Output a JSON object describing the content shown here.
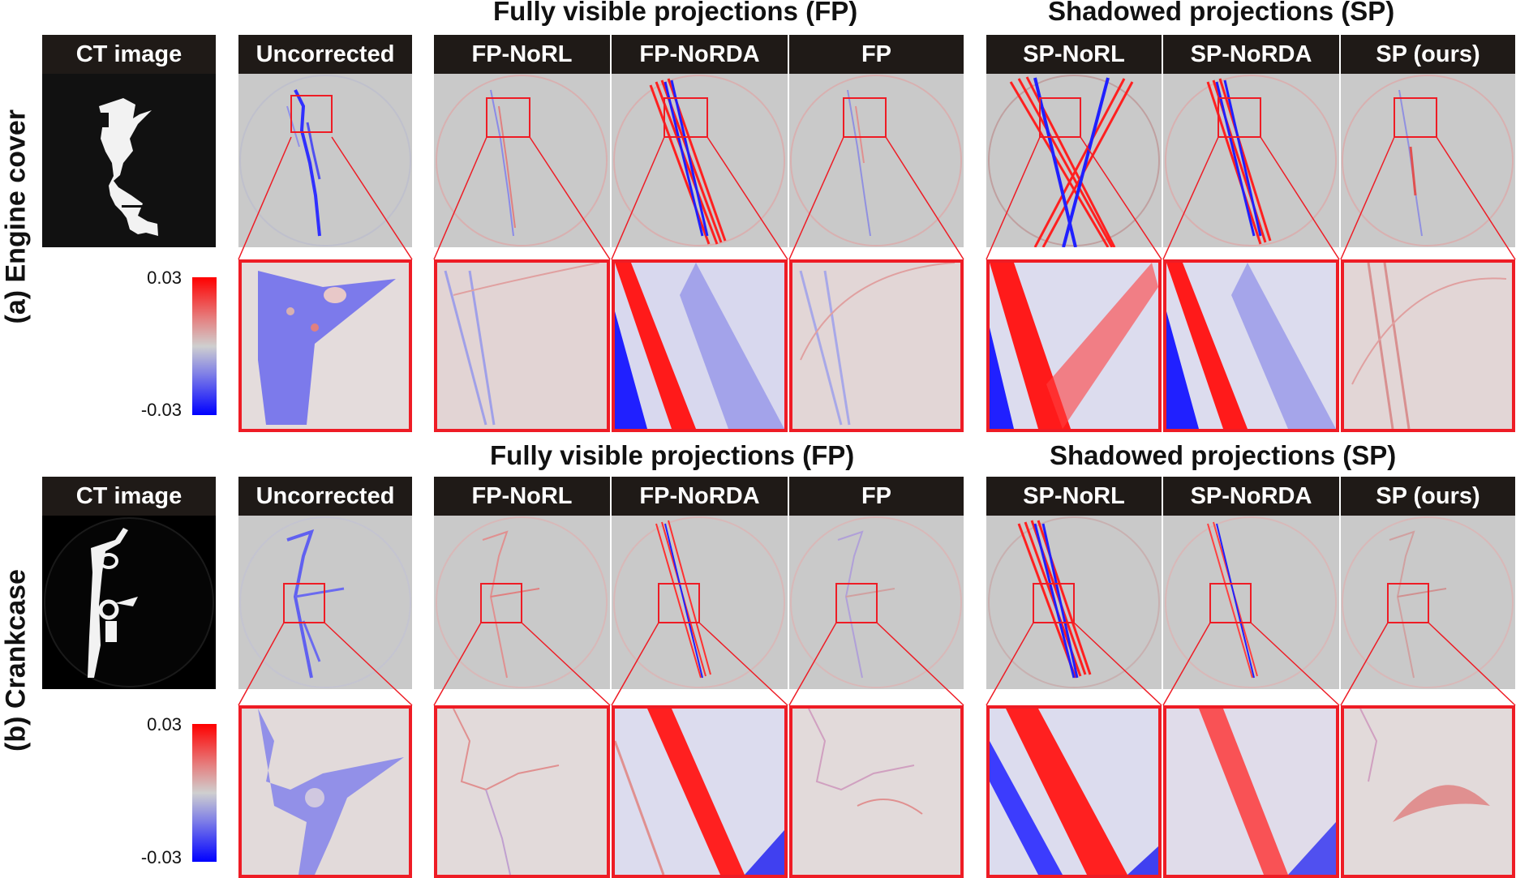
{
  "figure": {
    "group_titles": {
      "fp_top": "Fully visible projections (FP)",
      "sp_top": "Shadowed projections (SP)",
      "fp_bottom": "Fully visible projections (FP)",
      "sp_bottom": "Shadowed projections (SP)"
    },
    "columns": [
      "Uncorrected",
      "FP-NoRL",
      "FP-NoRDA",
      "FP",
      "SP-NoRL",
      "SP-NoRDA",
      "SP (ours)"
    ],
    "ct_label": "CT image",
    "rows": [
      {
        "label": "(a) Engine cover"
      },
      {
        "label": "(b) Crankcase"
      }
    ],
    "colorbar": {
      "max_label": "0.03",
      "min_label": "-0.03",
      "colors": [
        "#ff0000",
        "#cfcfcf",
        "#0000ff"
      ]
    },
    "accent_color": "#ee1c25"
  }
}
